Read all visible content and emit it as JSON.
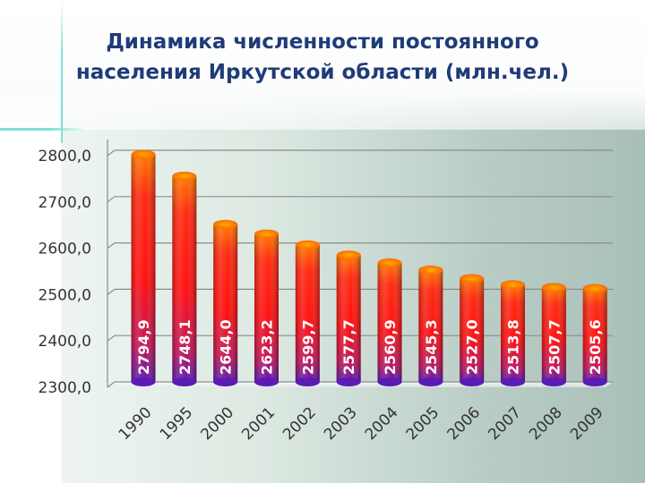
{
  "title_lines": [
    "Динамика численности постоянного",
    "населения Иркутской области (млн.чел.)"
  ],
  "chart_data": {
    "type": "bar",
    "title": "Динамика численности постоянного населения Иркутской области (млн.чел.)",
    "categories": [
      "1990",
      "1995",
      "2000",
      "2001",
      "2002",
      "2003",
      "2004",
      "2005",
      "2006",
      "2007",
      "2008",
      "2009"
    ],
    "values": [
      2794.9,
      2748.1,
      2644.0,
      2623.2,
      2599.7,
      2577.7,
      2560.9,
      2545.3,
      2527.0,
      2513.8,
      2507.7,
      2505.6
    ],
    "data_labels": [
      "2794,9",
      "2748,1",
      "2644,0",
      "2623,2",
      "2599,7",
      "2577,7",
      "2560,9",
      "2545,3",
      "2527,0",
      "2513,8",
      "2507,7",
      "2505,6"
    ],
    "y_ticks": [
      2300,
      2400,
      2500,
      2600,
      2700,
      2800
    ],
    "y_tick_labels": [
      "2300,0",
      "2400,0",
      "2500,0",
      "2600,0",
      "2700,0",
      "2800,0"
    ],
    "ylim": [
      2300,
      2800
    ],
    "xlabel": "",
    "ylabel": "",
    "grid": true,
    "legend": "none",
    "colors": {
      "bar_top": "#ff8a00",
      "bar_mid": "#ff1414",
      "bar_base": "#6a1cb0",
      "label_text": "#ffffff",
      "axis_text": "#333333",
      "title_text": "#1f3b78"
    }
  }
}
